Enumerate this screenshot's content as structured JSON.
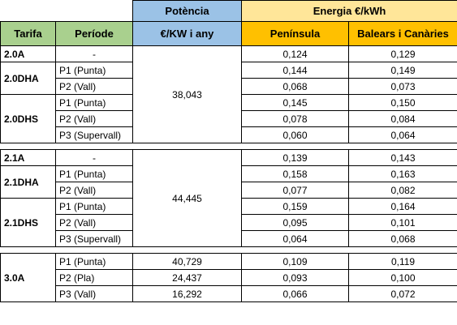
{
  "header": {
    "potencia": "Potència",
    "energia": "Energia €/kWh",
    "tarifa": "Tarifa",
    "periode": "Període",
    "potencia_unit": "€/KW i any",
    "peninsula": "Península",
    "balears": "Balears i Canàries"
  },
  "groups": [
    {
      "potencia": "38,043",
      "tariffs": [
        {
          "name": "2.0A",
          "periods": [
            {
              "label": "-",
              "peninsula": "0,124",
              "balears": "0,129"
            }
          ]
        },
        {
          "name": "2.0DHA",
          "periods": [
            {
              "label": "P1 (Punta)",
              "peninsula": "0,144",
              "balears": "0,149"
            },
            {
              "label": "P2 (Vall)",
              "peninsula": "0,068",
              "balears": "0,073"
            }
          ]
        },
        {
          "name": "2.0DHS",
          "periods": [
            {
              "label": "P1 (Punta)",
              "peninsula": "0,145",
              "balears": "0,150"
            },
            {
              "label": "P2 (Vall)",
              "peninsula": "0,078",
              "balears": "0,084"
            },
            {
              "label": "P3 (Supervall)",
              "peninsula": "0,060",
              "balears": "0,064"
            }
          ]
        }
      ]
    },
    {
      "potencia": "44,445",
      "tariffs": [
        {
          "name": "2.1A",
          "periods": [
            {
              "label": "-",
              "peninsula": "0,139",
              "balears": "0,143"
            }
          ]
        },
        {
          "name": "2.1DHA",
          "periods": [
            {
              "label": "P1 (Punta)",
              "peninsula": "0,158",
              "balears": "0,163"
            },
            {
              "label": "P2 (Vall)",
              "peninsula": "0,077",
              "balears": "0,082"
            }
          ]
        },
        {
          "name": "2.1DHS",
          "periods": [
            {
              "label": "P1 (Punta)",
              "peninsula": "0,159",
              "balears": "0,164"
            },
            {
              "label": "P2 (Vall)",
              "peninsula": "0,095",
              "balears": "0,101"
            },
            {
              "label": "P3 (Supervall)",
              "peninsula": "0,064",
              "balears": "0,068"
            }
          ]
        }
      ]
    },
    {
      "potencia": "",
      "tariffs": [
        {
          "name": "3.0A",
          "periods": [
            {
              "label": "P1 (Punta)",
              "potencia": "40,729",
              "peninsula": "0,109",
              "balears": "0,119"
            },
            {
              "label": "P2 (Pla)",
              "potencia": "24,437",
              "peninsula": "0,093",
              "balears": "0,100"
            },
            {
              "label": "P3 (Vall)",
              "potencia": "16,292",
              "peninsula": "0,066",
              "balears": "0,072"
            }
          ]
        }
      ]
    }
  ],
  "colors": {
    "tarifa_header": "#a9d08e",
    "potencia_header": "#9bc2e6",
    "energia_header": "#ffe699",
    "energia_subheader": "#ffc000"
  }
}
